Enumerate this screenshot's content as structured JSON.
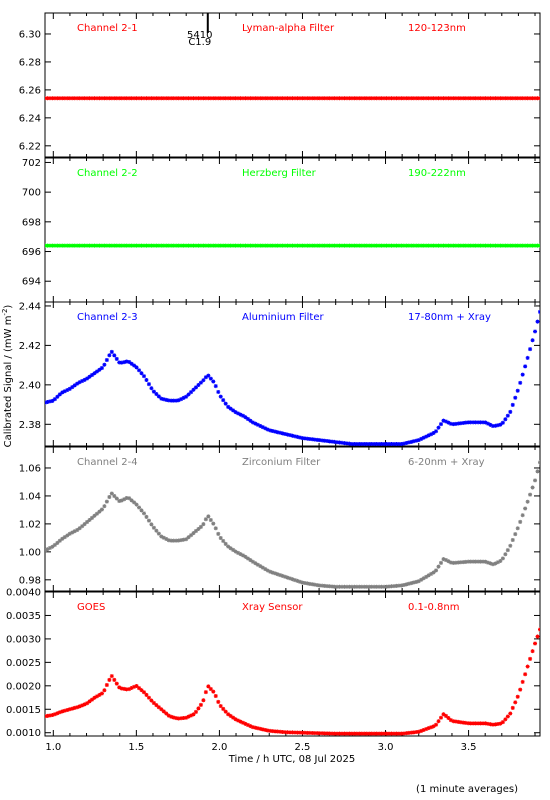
{
  "x_axis_label": "Time / h UTC, 08 Jul 2025",
  "y_axis_label": "Calibrated Signal / (mW m",
  "y_axis_label_sup": "-2",
  "y_axis_label_end": ")",
  "footer_note": "(1 minute averages)",
  "marker_text": [
    "5410",
    "C1.9"
  ],
  "marker_x_hours": 1.93,
  "x_ticks": [
    "1.0",
    "1.5",
    "2.0",
    "2.5",
    "3.0",
    "3.5"
  ],
  "chart_data": [
    {
      "type": "scatter",
      "panel_labels": [
        "Channel 2-1",
        "Lyman-alpha Filter",
        "120-123nm"
      ],
      "color": "#ff0000",
      "ylim": [
        6.212,
        6.315
      ],
      "yticks": [
        "6.22",
        "6.24",
        "6.26",
        "6.28",
        "6.30"
      ],
      "series": [
        {
          "x": [
            0.95,
            3.93
          ],
          "y": [
            6.254,
            6.254
          ]
        }
      ]
    },
    {
      "type": "scatter",
      "panel_labels": [
        "Channel 2-2",
        "Herzberg Filter",
        "190-222nm"
      ],
      "color": "#00ff00",
      "ylim": [
        692.6,
        702.3
      ],
      "yticks": [
        "694",
        "696",
        "698",
        "700",
        "702"
      ],
      "series": [
        {
          "x": [
            0.95,
            3.93
          ],
          "y": [
            696.4,
            696.4
          ]
        }
      ]
    },
    {
      "type": "scatter",
      "panel_labels": [
        "Channel 2-3",
        "Aluminium Filter",
        "17-80nm + Xray"
      ],
      "color": "#0000ff",
      "ylim": [
        2.369,
        2.442
      ],
      "yticks": [
        "2.38",
        "2.40",
        "2.42",
        "2.44"
      ],
      "series": [
        {
          "x": [
            0.95,
            1.0,
            1.05,
            1.1,
            1.15,
            1.2,
            1.25,
            1.3,
            1.35,
            1.4,
            1.45,
            1.5,
            1.55,
            1.6,
            1.65,
            1.7,
            1.75,
            1.8,
            1.85,
            1.9,
            1.93,
            1.97,
            2.0,
            2.05,
            2.1,
            2.15,
            2.2,
            2.3,
            2.4,
            2.5,
            2.6,
            2.7,
            2.8,
            2.9,
            3.0,
            3.1,
            3.2,
            3.3,
            3.35,
            3.4,
            3.5,
            3.6,
            3.65,
            3.7,
            3.75,
            3.8,
            3.85,
            3.9,
            3.93
          ],
          "y": [
            2.391,
            2.392,
            2.396,
            2.398,
            2.401,
            2.403,
            2.406,
            2.409,
            2.417,
            2.411,
            2.412,
            2.409,
            2.404,
            2.397,
            2.393,
            2.392,
            2.392,
            2.394,
            2.398,
            2.402,
            2.405,
            2.401,
            2.395,
            2.389,
            2.386,
            2.384,
            2.381,
            2.377,
            2.375,
            2.373,
            2.372,
            2.371,
            2.37,
            2.37,
            2.37,
            2.37,
            2.372,
            2.376,
            2.382,
            2.38,
            2.381,
            2.381,
            2.379,
            2.38,
            2.386,
            2.398,
            2.412,
            2.427,
            2.437
          ]
        }
      ]
    },
    {
      "type": "scatter",
      "panel_labels": [
        "Channel 2-4",
        "Zirconium Filter",
        "6-20nm + Xray"
      ],
      "color": "#808080",
      "ylim": [
        0.972,
        1.075
      ],
      "yticks": [
        "0.98",
        "1.00",
        "1.02",
        "1.04",
        "1.06"
      ],
      "series": [
        {
          "x": [
            0.95,
            1.0,
            1.05,
            1.1,
            1.15,
            1.2,
            1.25,
            1.3,
            1.35,
            1.4,
            1.45,
            1.5,
            1.55,
            1.6,
            1.65,
            1.7,
            1.75,
            1.8,
            1.85,
            1.9,
            1.93,
            1.97,
            2.0,
            2.05,
            2.1,
            2.15,
            2.2,
            2.3,
            2.4,
            2.5,
            2.6,
            2.7,
            2.8,
            2.9,
            3.0,
            3.1,
            3.2,
            3.3,
            3.35,
            3.4,
            3.5,
            3.6,
            3.65,
            3.7,
            3.75,
            3.8,
            3.85,
            3.9,
            3.93
          ],
          "y": [
            1.001,
            1.004,
            1.009,
            1.013,
            1.016,
            1.021,
            1.026,
            1.031,
            1.042,
            1.036,
            1.039,
            1.034,
            1.027,
            1.018,
            1.011,
            1.008,
            1.008,
            1.009,
            1.014,
            1.019,
            1.026,
            1.019,
            1.011,
            1.004,
            1.0,
            0.997,
            0.993,
            0.986,
            0.982,
            0.978,
            0.976,
            0.975,
            0.975,
            0.975,
            0.975,
            0.976,
            0.979,
            0.986,
            0.995,
            0.992,
            0.993,
            0.993,
            0.991,
            0.994,
            1.004,
            1.018,
            1.034,
            1.051,
            1.064
          ]
        }
      ]
    },
    {
      "type": "scatter",
      "panel_labels": [
        "GOES",
        "Xray Sensor",
        "0.1-0.8nm"
      ],
      "color": "#ff0000",
      "ylim": [
        0.00093,
        0.004
      ],
      "yticks": [
        "0.0010",
        "0.0015",
        "0.0020",
        "0.0025",
        "0.0030",
        "0.0035",
        "0.0040"
      ],
      "series": [
        {
          "x": [
            0.95,
            1.0,
            1.05,
            1.1,
            1.15,
            1.2,
            1.25,
            1.3,
            1.35,
            1.4,
            1.45,
            1.5,
            1.55,
            1.6,
            1.65,
            1.7,
            1.75,
            1.8,
            1.85,
            1.9,
            1.93,
            1.97,
            2.0,
            2.05,
            2.1,
            2.15,
            2.2,
            2.3,
            2.4,
            2.5,
            2.6,
            2.7,
            2.8,
            2.9,
            3.0,
            3.1,
            3.2,
            3.3,
            3.35,
            3.4,
            3.5,
            3.6,
            3.65,
            3.7,
            3.75,
            3.8,
            3.85,
            3.9,
            3.93
          ],
          "y": [
            0.00135,
            0.00138,
            0.00145,
            0.0015,
            0.00155,
            0.00162,
            0.00175,
            0.00185,
            0.00222,
            0.00195,
            0.00192,
            0.002,
            0.00185,
            0.00165,
            0.0015,
            0.00135,
            0.0013,
            0.00132,
            0.0014,
            0.00165,
            0.002,
            0.00185,
            0.0016,
            0.0014,
            0.00128,
            0.0012,
            0.00112,
            0.00104,
            0.00101,
            0.001,
            0.00099,
            0.00098,
            0.00098,
            0.00098,
            0.00098,
            0.00098,
            0.00102,
            0.00115,
            0.0014,
            0.00125,
            0.0012,
            0.0012,
            0.00117,
            0.0012,
            0.0014,
            0.0018,
            0.00235,
            0.0029,
            0.0032
          ]
        }
      ]
    }
  ]
}
